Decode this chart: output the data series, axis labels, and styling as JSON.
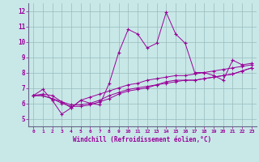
{
  "xlabel": "Windchill (Refroidissement éolien,°C)",
  "xlim": [
    -0.5,
    23.5
  ],
  "ylim": [
    4.5,
    12.5
  ],
  "xticks": [
    0,
    1,
    2,
    3,
    4,
    5,
    6,
    7,
    8,
    9,
    10,
    11,
    12,
    13,
    14,
    15,
    16,
    17,
    18,
    19,
    20,
    21,
    22,
    23
  ],
  "yticks": [
    5,
    6,
    7,
    8,
    9,
    10,
    11,
    12
  ],
  "background_color": "#c8e8e8",
  "line_color": "#990099",
  "grid_color": "#99bbbb",
  "line1_x": [
    0,
    1,
    2,
    3,
    4,
    5,
    6,
    7,
    8,
    9,
    10,
    11,
    12,
    13,
    14,
    15,
    16,
    17,
    18,
    19,
    20,
    21,
    22,
    23
  ],
  "line1_y": [
    6.5,
    6.9,
    6.2,
    5.3,
    5.7,
    6.2,
    6.0,
    5.9,
    7.3,
    9.3,
    10.8,
    10.5,
    9.6,
    9.9,
    11.9,
    10.5,
    9.9,
    8.0,
    8.0,
    7.8,
    7.5,
    8.8,
    8.5,
    8.6
  ],
  "line2_x": [
    0,
    1,
    2,
    3,
    4,
    5,
    6,
    7,
    8,
    9,
    10,
    11,
    12,
    13,
    14,
    15,
    16,
    17,
    18,
    19,
    20,
    21,
    22,
    23
  ],
  "line2_y": [
    6.5,
    6.5,
    6.3,
    6.1,
    5.9,
    5.9,
    6.0,
    6.2,
    6.5,
    6.7,
    6.9,
    7.0,
    7.1,
    7.2,
    7.4,
    7.5,
    7.5,
    7.5,
    7.6,
    7.7,
    7.8,
    7.9,
    8.1,
    8.3
  ],
  "line3_x": [
    0,
    1,
    2,
    3,
    4,
    5,
    6,
    7,
    8,
    9,
    10,
    11,
    12,
    13,
    14,
    15,
    16,
    17,
    18,
    19,
    20,
    21,
    22,
    23
  ],
  "line3_y": [
    6.5,
    6.5,
    6.3,
    6.0,
    5.8,
    5.8,
    5.9,
    6.1,
    6.3,
    6.6,
    6.8,
    6.9,
    7.0,
    7.2,
    7.3,
    7.4,
    7.5,
    7.5,
    7.6,
    7.7,
    7.8,
    7.9,
    8.1,
    8.3
  ],
  "line4_x": [
    0,
    1,
    2,
    3,
    4,
    5,
    6,
    7,
    8,
    9,
    10,
    11,
    12,
    13,
    14,
    15,
    16,
    17,
    18,
    19,
    20,
    21,
    22,
    23
  ],
  "line4_y": [
    6.5,
    6.6,
    6.5,
    6.1,
    5.7,
    6.2,
    6.4,
    6.6,
    6.8,
    7.0,
    7.2,
    7.3,
    7.5,
    7.6,
    7.7,
    7.8,
    7.8,
    7.9,
    8.0,
    8.1,
    8.2,
    8.3,
    8.4,
    8.5
  ]
}
